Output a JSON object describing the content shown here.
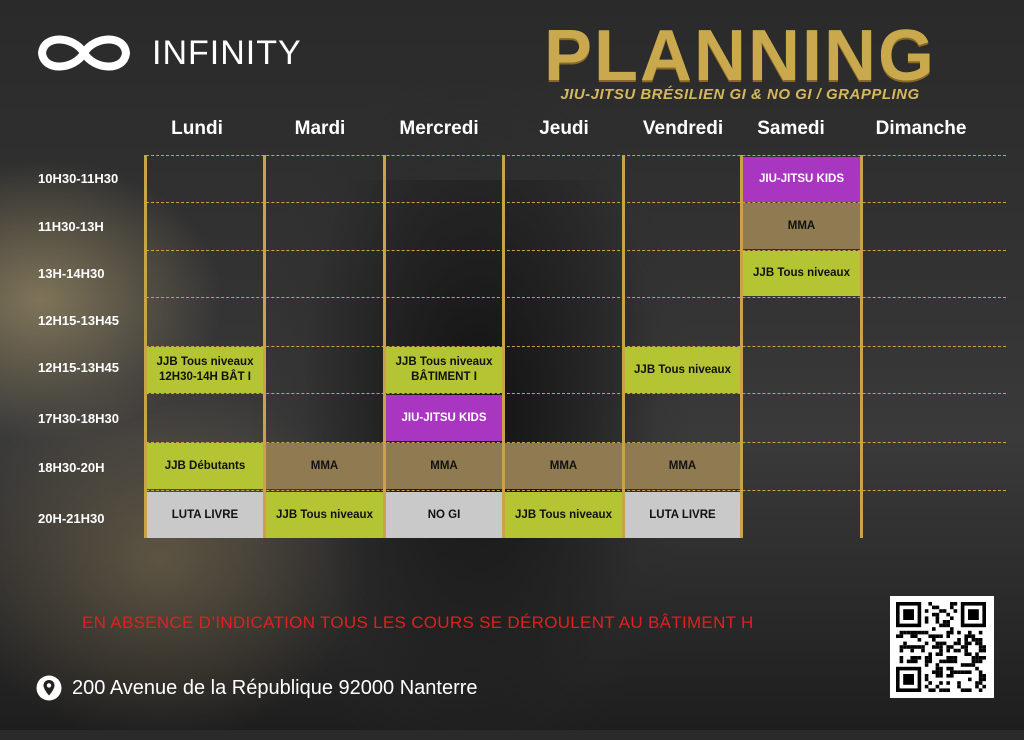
{
  "brand": {
    "name": "INFINITY"
  },
  "header": {
    "title": "PLANNING",
    "subtitle": "JIU-JITSU BRÉSILIEN GI & NO GI / GRAPPLING"
  },
  "days": [
    "Lundi",
    "Mardi",
    "Mercredi",
    "Jeudi",
    "Vendredi",
    "Samedi",
    "Dimanche"
  ],
  "time_slots": [
    "10H30-11H30",
    "11H30-13H",
    "13H-14H30",
    "12H15-13H45",
    "12H15-13H45",
    "17H30-18H30",
    "18H30-20H",
    "20H-21H30"
  ],
  "classes": {
    "sam_1030": "JIU-JITSU KIDS",
    "sam_1130": "MMA",
    "sam_13": "JJB Tous niveaux",
    "lun_1215_a": "JJB Tous niveaux",
    "lun_1215_b": "12H30-14H BÂT I",
    "mer_1215_a": "JJB Tous niveaux",
    "mer_1215_b": "BÂTIMENT I",
    "ven_1215": "JJB Tous niveaux",
    "mer_1730": "JIU-JITSU KIDS",
    "lun_1830": "JJB Débutants",
    "mar_1830": "MMA",
    "mer_1830": "MMA",
    "jeu_1830": "MMA",
    "ven_1830": "MMA",
    "lun_20": "LUTA LIVRE",
    "mar_20": "JJB Tous niveaux",
    "mer_20": "NO GI",
    "jeu_20": "JJB Tous niveaux",
    "ven_20": "LUTA LIVRE"
  },
  "notice": "EN ABSENCE D’INDICATION TOUS LES COURS SE DÉROULENT AU BÂTIMENT H",
  "address": "200 Avenue de la République 92000 Nanterre",
  "colors": {
    "gold": "#c9a84e",
    "green": "#b4c432",
    "purple": "#a936c0",
    "tan": "#8f7a52",
    "grey": "#c9c9c9",
    "notice_red": "#e02020"
  },
  "icons": [
    "infinity-logo-icon",
    "location-pin-icon",
    "qr-code-icon"
  ]
}
